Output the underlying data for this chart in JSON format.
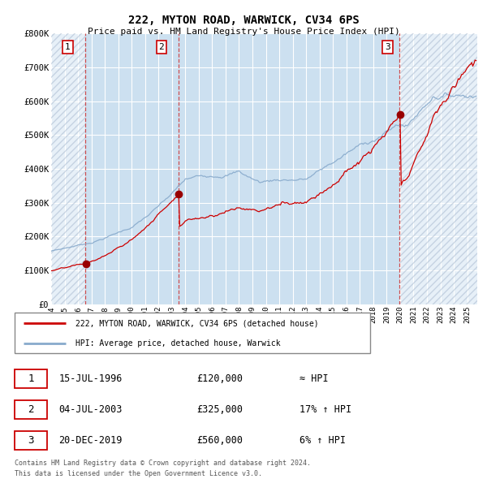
{
  "title": "222, MYTON ROAD, WARWICK, CV34 6PS",
  "subtitle": "Price paid vs. HM Land Registry's House Price Index (HPI)",
  "sale_dates_str": [
    "15-JUL-1996",
    "04-JUL-2003",
    "20-DEC-2019"
  ],
  "sale_prices": [
    120000,
    325000,
    560000
  ],
  "sale_years_float": [
    1996.542,
    2003.504,
    2019.963
  ],
  "sale_labels": [
    "1",
    "2",
    "3"
  ],
  "sale_hpi_relation": [
    "≈ HPI",
    "17% ↑ HPI",
    "6% ↑ HPI"
  ],
  "legend_line1": "222, MYTON ROAD, WARWICK, CV34 6PS (detached house)",
  "legend_line2": "HPI: Average price, detached house, Warwick",
  "footer1": "Contains HM Land Registry data © Crown copyright and database right 2024.",
  "footer2": "This data is licensed under the Open Government Licence v3.0.",
  "ylim": [
    0,
    800000
  ],
  "yticks": [
    0,
    100000,
    200000,
    300000,
    400000,
    500000,
    600000,
    700000,
    800000
  ],
  "ytick_labels": [
    "£0",
    "£100K",
    "£200K",
    "£300K",
    "£400K",
    "£500K",
    "£600K",
    "£700K",
    "£800K"
  ],
  "xlim_start": 1994.0,
  "xlim_end": 2025.75,
  "plot_bg_color": "#cce0f0",
  "red_line_color": "#cc0000",
  "blue_line_color": "#88aacc",
  "marker_color": "#990000",
  "vline_color": "#cc3333",
  "grid_color": "#ffffff",
  "hatch_color": "#aabbd0",
  "label_box_color": "#cc0000",
  "legend_border_color": "#888888",
  "table_box_color": "#cc0000",
  "footer_color": "#555555"
}
